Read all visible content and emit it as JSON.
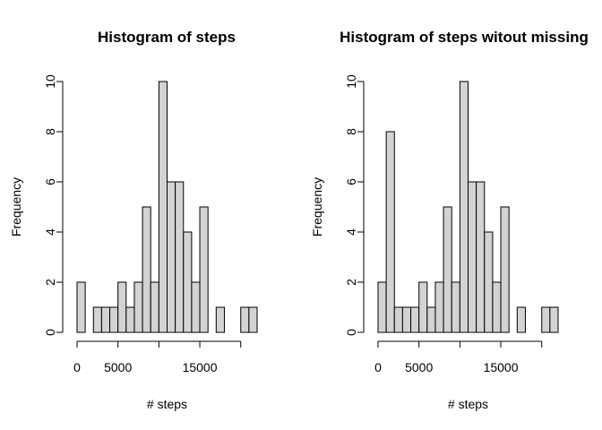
{
  "chart_data": [
    {
      "type": "bar",
      "title": "Histogram of steps",
      "xlabel": "# steps",
      "ylabel": "Frequency",
      "bin_width": 1000,
      "bin_starts": [
        0,
        1000,
        2000,
        3000,
        4000,
        5000,
        6000,
        7000,
        8000,
        9000,
        10000,
        11000,
        12000,
        13000,
        14000,
        15000,
        16000,
        17000,
        18000,
        19000,
        20000,
        21000
      ],
      "values": [
        2,
        0,
        1,
        1,
        1,
        2,
        1,
        2,
        5,
        2,
        10,
        6,
        6,
        4,
        2,
        5,
        0,
        1,
        0,
        0,
        1,
        1
      ],
      "xlim": [
        0,
        22000
      ],
      "ylim": [
        0,
        10
      ],
      "x_ticks": [
        0,
        5000,
        10000,
        15000,
        20000
      ],
      "x_tick_labels": [
        "0",
        "5000",
        "",
        "15000",
        ""
      ],
      "y_ticks": [
        0,
        2,
        4,
        6,
        8,
        10
      ],
      "y_tick_labels": [
        "0",
        "2",
        "4",
        "6",
        "8",
        "10"
      ],
      "grid": false,
      "bar_color": "#d3d3d3"
    },
    {
      "type": "bar",
      "title": "Histogram of steps witout missing",
      "xlabel": "# steps",
      "ylabel": "Frequency",
      "bin_width": 1000,
      "bin_starts": [
        0,
        1000,
        2000,
        3000,
        4000,
        5000,
        6000,
        7000,
        8000,
        9000,
        10000,
        11000,
        12000,
        13000,
        14000,
        15000,
        16000,
        17000,
        18000,
        19000,
        20000,
        21000
      ],
      "values": [
        2,
        8,
        1,
        1,
        1,
        2,
        1,
        2,
        5,
        2,
        10,
        6,
        6,
        4,
        2,
        5,
        0,
        1,
        0,
        0,
        1,
        1
      ],
      "xlim": [
        0,
        22000
      ],
      "ylim": [
        0,
        10
      ],
      "x_ticks": [
        0,
        5000,
        10000,
        15000,
        20000
      ],
      "x_tick_labels": [
        "0",
        "5000",
        "",
        "15000",
        ""
      ],
      "y_ticks": [
        0,
        2,
        4,
        6,
        8,
        10
      ],
      "y_tick_labels": [
        "0",
        "2",
        "4",
        "6",
        "8",
        "10"
      ],
      "grid": false,
      "bar_color": "#d3d3d3"
    }
  ]
}
